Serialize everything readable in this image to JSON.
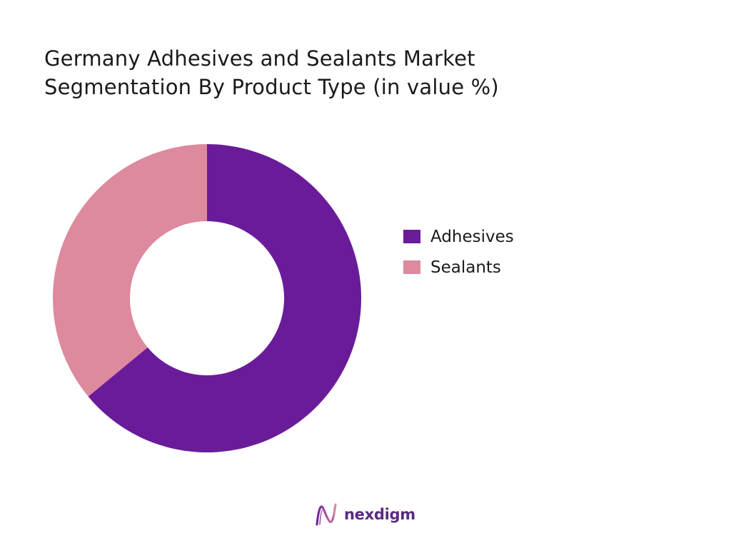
{
  "chart_data": {
    "type": "pie",
    "title_lines": [
      "Germany Adhesives and Sealants Market",
      "Segmentation By Product Type (in value %)"
    ],
    "donut": true,
    "categories": [
      "Adhesives",
      "Sealants"
    ],
    "values": [
      64,
      36
    ],
    "colors": [
      "#6a1b9a",
      "#dd899e"
    ],
    "legend_position": "right"
  },
  "brand": {
    "name": "nexdigm",
    "mark_color_start": "#6a1b9a",
    "mark_color_end": "#dd899e"
  }
}
